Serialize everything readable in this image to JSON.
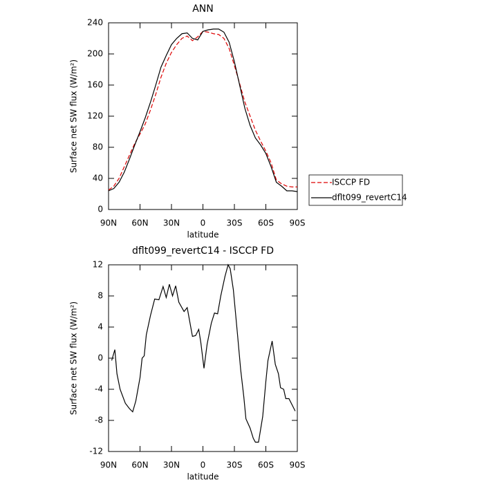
{
  "chart_data": [
    {
      "type": "line",
      "title": "ANN",
      "xlabel": "latitude",
      "ylabel": "Surface net SW flux (W/m²)",
      "x": [
        90,
        85,
        80,
        75,
        70,
        65,
        60,
        55,
        50,
        45,
        40,
        35,
        30,
        25,
        20,
        15,
        10,
        5,
        0,
        -5,
        -10,
        -15,
        -20,
        -25,
        -30,
        -35,
        -40,
        -45,
        -50,
        -55,
        -60,
        -65,
        -70,
        -75,
        -80,
        -85,
        -90
      ],
      "series": [
        {
          "name": "ISCCP FD",
          "color": "#dd0000",
          "linestyle": "dashed",
          "values": [
            25,
            30,
            40,
            55,
            70,
            85,
            97,
            110,
            128,
            148,
            170,
            188,
            202,
            212,
            220,
            223,
            217,
            222,
            229,
            228,
            226,
            225,
            220,
            207,
            185,
            162,
            138,
            120,
            102,
            88,
            75,
            60,
            38,
            33,
            30,
            29,
            29
          ]
        },
        {
          "name": "dflt099_revertC14",
          "color": "#000000",
          "linestyle": "solid",
          "values": [
            24,
            27,
            35,
            48,
            65,
            83,
            100,
            118,
            138,
            160,
            183,
            198,
            212,
            220,
            226,
            227,
            220,
            218,
            229,
            231,
            232,
            232,
            228,
            215,
            190,
            160,
            130,
            108,
            92,
            83,
            72,
            55,
            35,
            30,
            24,
            24,
            23
          ]
        }
      ],
      "xlim": [
        90,
        -90
      ],
      "xticks": [
        {
          "value": 90,
          "label": "90N"
        },
        {
          "value": 60,
          "label": "60N"
        },
        {
          "value": 30,
          "label": "30N"
        },
        0,
        {
          "value": -30,
          "label": "30S"
        },
        {
          "value": -60,
          "label": "60S"
        },
        {
          "value": -90,
          "label": "90S"
        }
      ],
      "ylim": [
        0,
        240
      ],
      "yticks": [
        0,
        40,
        80,
        120,
        160,
        200,
        240
      ],
      "legend": "outside-right"
    },
    {
      "type": "line",
      "title": "dflt099_revertC14 - ISCCP FD",
      "xlabel": "latitude",
      "ylabel": "Surface net SW flux (W/m²)",
      "x": [
        87,
        84,
        82,
        79,
        74,
        70,
        67,
        64,
        60,
        58,
        56,
        54,
        50,
        46,
        42,
        38,
        35,
        32,
        29,
        26,
        23,
        18,
        15,
        10,
        7,
        4,
        2,
        -1,
        -4,
        -8,
        -11,
        -14,
        -17,
        -21,
        -24,
        -26,
        -29,
        -33,
        -36,
        -39,
        -41,
        -45,
        -48,
        -50,
        -53,
        -57,
        -60,
        -62,
        -66,
        -69,
        -72,
        -74,
        -77,
        -79,
        -82,
        -88
      ],
      "color": "#000000",
      "values": [
        -0.3,
        1.1,
        -2,
        -4,
        -5.8,
        -6.5,
        -6.9,
        -5.5,
        -2.5,
        0,
        0.3,
        3,
        5.5,
        7.6,
        7.5,
        9.2,
        7.8,
        9.5,
        8,
        9.3,
        7.2,
        6,
        6.5,
        2.8,
        2.9,
        3.7,
        2,
        -1.3,
        1.8,
        4.5,
        5.8,
        5.7,
        8,
        10.5,
        12,
        11.5,
        8.8,
        3,
        -1.5,
        -5,
        -7.8,
        -9,
        -10.3,
        -10.8,
        -10.8,
        -7.5,
        -3,
        -0.3,
        2.2,
        -0.8,
        -2,
        -3.8,
        -4,
        -5.2,
        -5.2,
        -6.8
      ],
      "xlim": [
        90,
        -90
      ],
      "xticks": [
        {
          "value": 90,
          "label": "90N"
        },
        {
          "value": 60,
          "label": "60N"
        },
        {
          "value": 30,
          "label": "30N"
        },
        0,
        {
          "value": -30,
          "label": "30S"
        },
        {
          "value": -60,
          "label": "60S"
        },
        {
          "value": -90,
          "label": "90S"
        }
      ],
      "ylim": [
        -12,
        12
      ],
      "yticks": [
        -12,
        -8,
        -4,
        0,
        4,
        8,
        12
      ]
    }
  ]
}
